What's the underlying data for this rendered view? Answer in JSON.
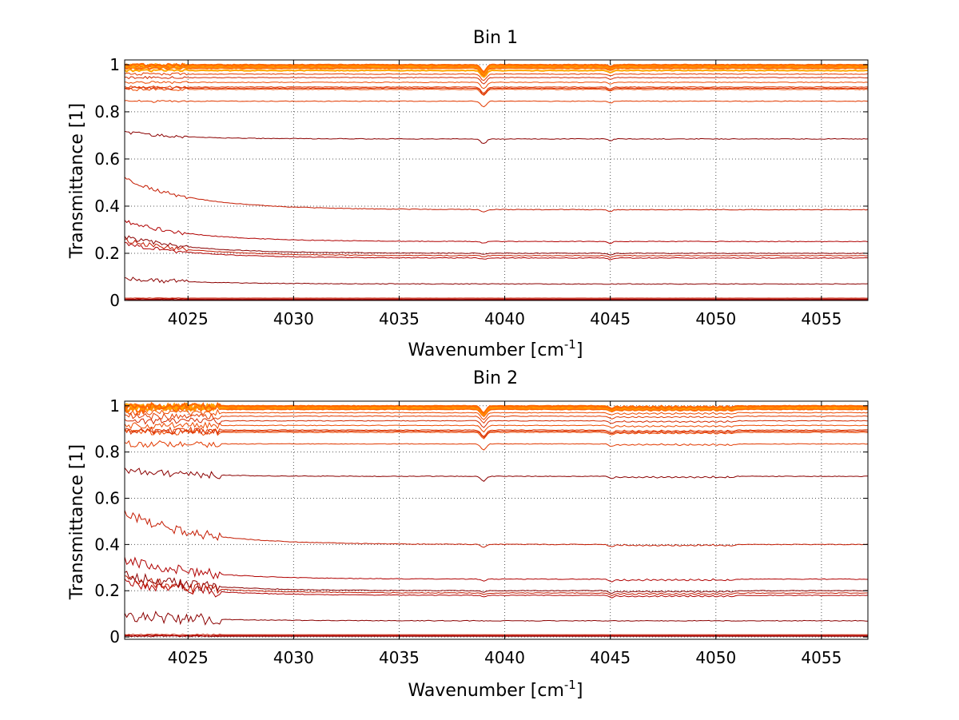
{
  "chart_data": [
    {
      "type": "line",
      "title": "Bin 1",
      "xlabel": "Wavenumber [cm",
      "xlabel_sup": "-1",
      "xlabel_end": "]",
      "ylabel": "Transmittance [1]",
      "xlim": [
        4022,
        4057.2
      ],
      "ylim": [
        0,
        1.02
      ],
      "xticks": [
        4025,
        4030,
        4035,
        4040,
        4045,
        4050,
        4055
      ],
      "yticks": [
        0,
        0.2,
        0.4,
        0.6,
        0.8,
        1
      ],
      "ytick_labels": [
        "0",
        "0.2",
        "0.4",
        "0.6",
        "0.8",
        "1"
      ],
      "grid": true,
      "series_count": 25,
      "series_colors": [
        "#8b0000",
        "#b00000",
        "#c41a00",
        "#d42a00",
        "#e23a00",
        "#ee4a00",
        "#ff6600",
        "#ff8c00",
        "#ffa500",
        "#1f77b4"
      ],
      "series_levels": [
        0.003,
        0.006,
        0.01,
        0.07,
        0.18,
        0.19,
        0.2,
        0.25,
        0.385,
        0.685,
        0.845,
        0.895,
        0.9,
        0.905,
        0.925,
        0.945,
        0.96,
        0.975,
        0.985,
        0.99,
        0.993,
        0.995,
        0.997,
        0.998,
        0.999
      ]
    },
    {
      "type": "line",
      "title": "Bin 2",
      "xlabel": "Wavenumber [cm",
      "xlabel_sup": "-1",
      "xlabel_end": "]",
      "ylabel": "Transmittance [1]",
      "xlim": [
        4022,
        4057.2
      ],
      "ylim": [
        -0.01,
        1.02
      ],
      "xticks": [
        4025,
        4030,
        4035,
        4040,
        4045,
        4050,
        4055
      ],
      "yticks": [
        0,
        0.2,
        0.4,
        0.6,
        0.8,
        1
      ],
      "ytick_labels": [
        "0",
        "0.2",
        "0.4",
        "0.6",
        "0.8",
        "1"
      ],
      "grid": true,
      "series_count": 25,
      "series_colors": [
        "#8b0000",
        "#b00000",
        "#c41a00",
        "#d42a00",
        "#e23a00",
        "#ee4a00",
        "#ff6600",
        "#ff8c00",
        "#ffa500",
        "#1f77b4"
      ],
      "series_levels": [
        0.003,
        0.006,
        0.01,
        0.07,
        0.18,
        0.19,
        0.2,
        0.25,
        0.4,
        0.695,
        0.835,
        0.885,
        0.89,
        0.895,
        0.915,
        0.935,
        0.955,
        0.97,
        0.985,
        0.99,
        0.993,
        0.995,
        0.997,
        0.998,
        0.999
      ]
    }
  ]
}
